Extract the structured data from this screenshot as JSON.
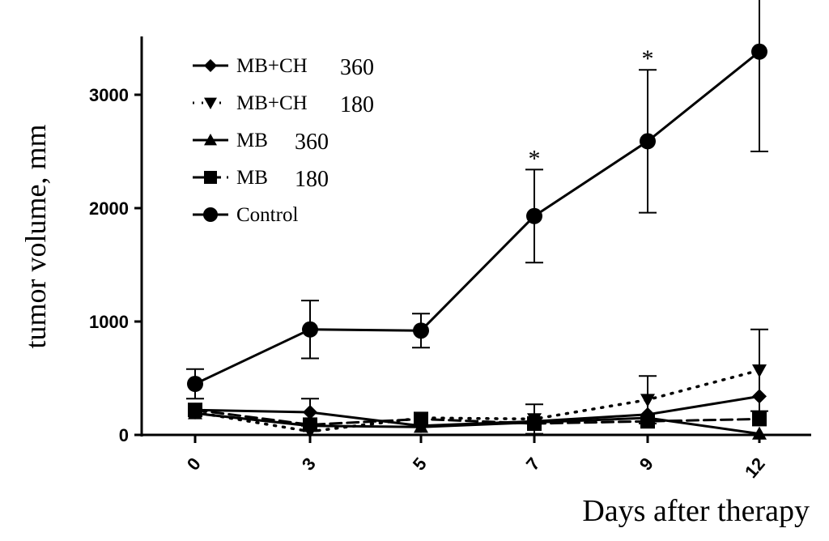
{
  "chart_data": {
    "type": "line",
    "xlabel": "Days after therapy",
    "ylabel": "tumor volume, mm",
    "categories": [
      "0",
      "3",
      "5",
      "7",
      "9",
      "12"
    ],
    "ylim": [
      0,
      3500
    ],
    "yticks": [
      "0",
      "1000",
      "2000",
      "3000"
    ],
    "grid": false,
    "legend_placement": "top-left",
    "series": [
      {
        "name": "MB+CH",
        "dose": "360",
        "marker": "diamond",
        "dash": "solid",
        "values": [
          220,
          200,
          80,
          120,
          180,
          340
        ],
        "errors": [
          0,
          120,
          0,
          0,
          0,
          0
        ]
      },
      {
        "name": "MB+CH",
        "dose": "180",
        "marker": "triangle-down",
        "dash": "dotted",
        "values": [
          200,
          30,
          150,
          140,
          310,
          570
        ],
        "errors": [
          0,
          0,
          0,
          130,
          210,
          360
        ]
      },
      {
        "name": "MB",
        "dose": "360",
        "marker": "triangle-up",
        "dash": "solid",
        "values": [
          190,
          80,
          70,
          110,
          150,
          10
        ],
        "errors": [
          0,
          0,
          0,
          0,
          0,
          0
        ]
      },
      {
        "name": "MB",
        "dose": "180",
        "marker": "square",
        "dash": "dashed",
        "values": [
          220,
          90,
          140,
          100,
          120,
          140
        ],
        "errors": [
          0,
          0,
          0,
          0,
          0,
          0
        ]
      },
      {
        "name": "Control",
        "dose": "",
        "marker": "circle",
        "dash": "solid",
        "values": [
          450,
          930,
          920,
          1930,
          2590,
          3380
        ],
        "errors": [
          130,
          255,
          150,
          410,
          630,
          880
        ]
      }
    ],
    "annotations": [
      {
        "text": "*",
        "x": "7"
      },
      {
        "text": "*",
        "x": "9"
      },
      {
        "text": "*",
        "x": "12"
      }
    ]
  }
}
